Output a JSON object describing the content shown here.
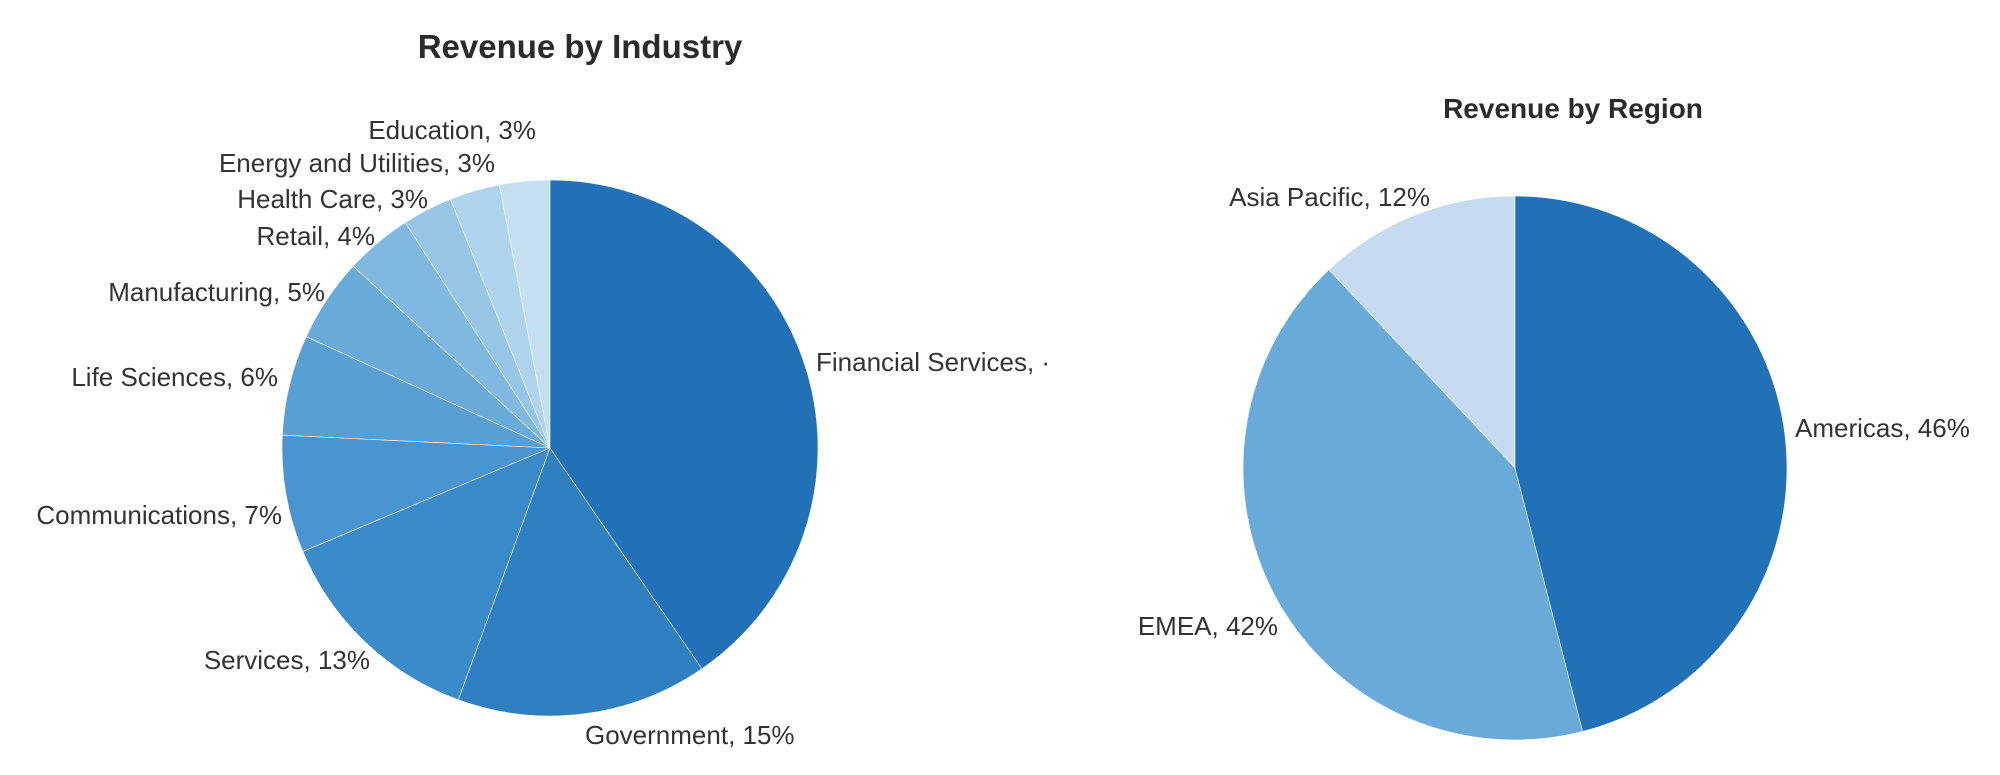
{
  "chart_data": [
    {
      "type": "pie",
      "title": "Revenue by Industry",
      "slices": [
        {
          "label": "Financial Services",
          "value": 40,
          "display": "Financial Services, ·",
          "color": "#2270b5"
        },
        {
          "label": "Government",
          "value": 15,
          "display": "Government, 15%",
          "color": "#2f7fc1"
        },
        {
          "label": "Services",
          "value": 13,
          "display": "Services, 13%",
          "color": "#3c8bc9"
        },
        {
          "label": "Communications",
          "value": 7,
          "display": "Communications, 7%",
          "color": "#4a95cf"
        },
        {
          "label": "Life Sciences",
          "value": 6,
          "display": "Life Sciences, 6%",
          "color": "#589fd4"
        },
        {
          "label": "Manufacturing",
          "value": 5,
          "display": "Manufacturing, 5%",
          "color": "#6aaad9"
        },
        {
          "label": "Retail",
          "value": 4,
          "display": "Retail, 4%",
          "color": "#80b8df"
        },
        {
          "label": "Health Care",
          "value": 3,
          "display": "Health Care, 3%",
          "color": "#96c5e5"
        },
        {
          "label": "Energy and Utilities",
          "value": 3,
          "display": "Energy and Utilities, 3%",
          "color": "#aed3ec"
        },
        {
          "label": "Education",
          "value": 3,
          "display": "Education, 3%",
          "color": "#c5dff2"
        }
      ]
    },
    {
      "type": "pie",
      "title": "Revenue by Region",
      "slices": [
        {
          "label": "Americas",
          "value": 46,
          "display": "Americas, 46%",
          "color": "#2270b5"
        },
        {
          "label": "EMEA",
          "value": 42,
          "display": "EMEA, 42%",
          "color": "#6aaad9"
        },
        {
          "label": "Asia Pacific",
          "value": 12,
          "display": "Asia Pacific, 12%",
          "color": "#c6dbef"
        }
      ]
    }
  ]
}
